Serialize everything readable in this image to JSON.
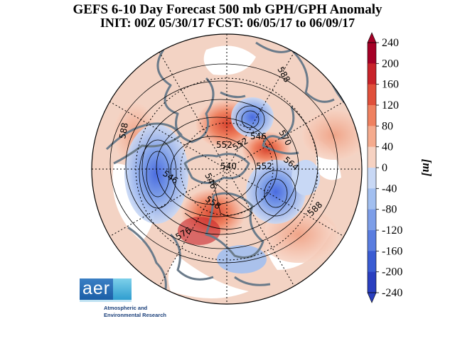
{
  "title": {
    "line1": "GEFS 6-10 Day Forecast 500 mb GPH/GPH Anomaly",
    "line2": "INIT: 00Z 05/30/17   FCST: 06/05/17 to 06/09/17"
  },
  "colorbar": {
    "unit_label": "[m]",
    "ticks": [
      "240",
      "200",
      "160",
      "120",
      "80",
      "40",
      "0",
      "-40",
      "-80",
      "-120",
      "-160",
      "-200",
      "-240"
    ],
    "tick_values": [
      240,
      200,
      160,
      120,
      80,
      40,
      0,
      -40,
      -80,
      -120,
      -160,
      -200,
      -240
    ],
    "colors_top_to_bottom": [
      "#a50026",
      "#c8232a",
      "#e0503b",
      "#ef8160",
      "#f5ab8e",
      "#f6d2c2",
      "#ffffff",
      "#c8d8f5",
      "#a2bff0",
      "#7d9ee8",
      "#5a7de0",
      "#3a5cd3",
      "#2a3fc0"
    ]
  },
  "contour_labels": [
    "588",
    "588",
    "588",
    "576",
    "570",
    "564",
    "558",
    "552",
    "552",
    "552",
    "546",
    "546",
    "546",
    "540"
  ],
  "logo": {
    "abbrev": "aer",
    "line1": "Atmospheric and",
    "line2": "Environmental Research"
  },
  "map": {
    "projection": "north-polar-stereographic",
    "land_outline_color": "#6b7b8a",
    "graticule_style": "dotted"
  }
}
